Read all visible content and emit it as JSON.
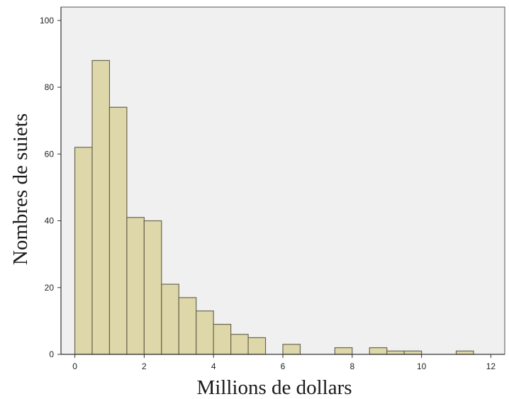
{
  "chart_data": {
    "type": "histogram",
    "title": "",
    "xlabel": "Millions de dollars",
    "ylabel": "Nombres de suiets",
    "xlim": [
      -0.4,
      12.4
    ],
    "ylim": [
      0,
      104
    ],
    "x_ticks": [
      0,
      2,
      4,
      6,
      8,
      10,
      12
    ],
    "y_ticks": [
      0,
      20,
      40,
      60,
      80,
      100
    ],
    "grid": false,
    "bin_width": 0.5,
    "bins": [
      {
        "x0": 0.0,
        "x1": 0.5,
        "value": 62
      },
      {
        "x0": 0.5,
        "x1": 1.0,
        "value": 88
      },
      {
        "x0": 1.0,
        "x1": 1.5,
        "value": 74
      },
      {
        "x0": 1.5,
        "x1": 2.0,
        "value": 41
      },
      {
        "x0": 2.0,
        "x1": 2.5,
        "value": 40
      },
      {
        "x0": 2.5,
        "x1": 3.0,
        "value": 21
      },
      {
        "x0": 3.0,
        "x1": 3.5,
        "value": 17
      },
      {
        "x0": 3.5,
        "x1": 4.0,
        "value": 13
      },
      {
        "x0": 4.0,
        "x1": 4.5,
        "value": 9
      },
      {
        "x0": 4.5,
        "x1": 5.0,
        "value": 6
      },
      {
        "x0": 5.0,
        "x1": 5.5,
        "value": 5
      },
      {
        "x0": 6.0,
        "x1": 6.5,
        "value": 3
      },
      {
        "x0": 7.5,
        "x1": 8.0,
        "value": 2
      },
      {
        "x0": 8.5,
        "x1": 9.0,
        "value": 2
      },
      {
        "x0": 9.0,
        "x1": 9.5,
        "value": 1
      },
      {
        "x0": 9.5,
        "x1": 10.0,
        "value": 1
      },
      {
        "x0": 11.0,
        "x1": 11.5,
        "value": 1
      }
    ],
    "colors": {
      "bar_fill": "#ddd7a9",
      "bar_stroke": "#6b6650",
      "plot_background": "#f0f0f0",
      "frame": "#555555",
      "axis": "#333333",
      "text": "#222222"
    }
  }
}
